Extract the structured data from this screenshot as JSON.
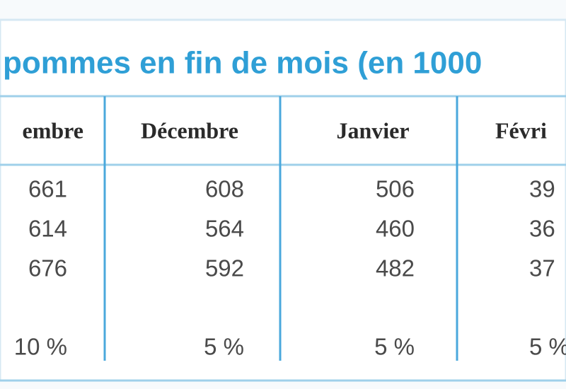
{
  "table": {
    "title": "pommes en fin de mois (en 1000",
    "header": [
      "embre",
      "Décembre",
      "Janvier",
      "Févri"
    ],
    "rows": [
      [
        "661",
        "608",
        "506",
        "39"
      ],
      [
        "614",
        "564",
        "460",
        "36"
      ],
      [
        "676",
        "592",
        "482",
        "37"
      ]
    ],
    "percent_row": [
      "10 %",
      "5 %",
      "5 %",
      "5 %"
    ]
  }
}
